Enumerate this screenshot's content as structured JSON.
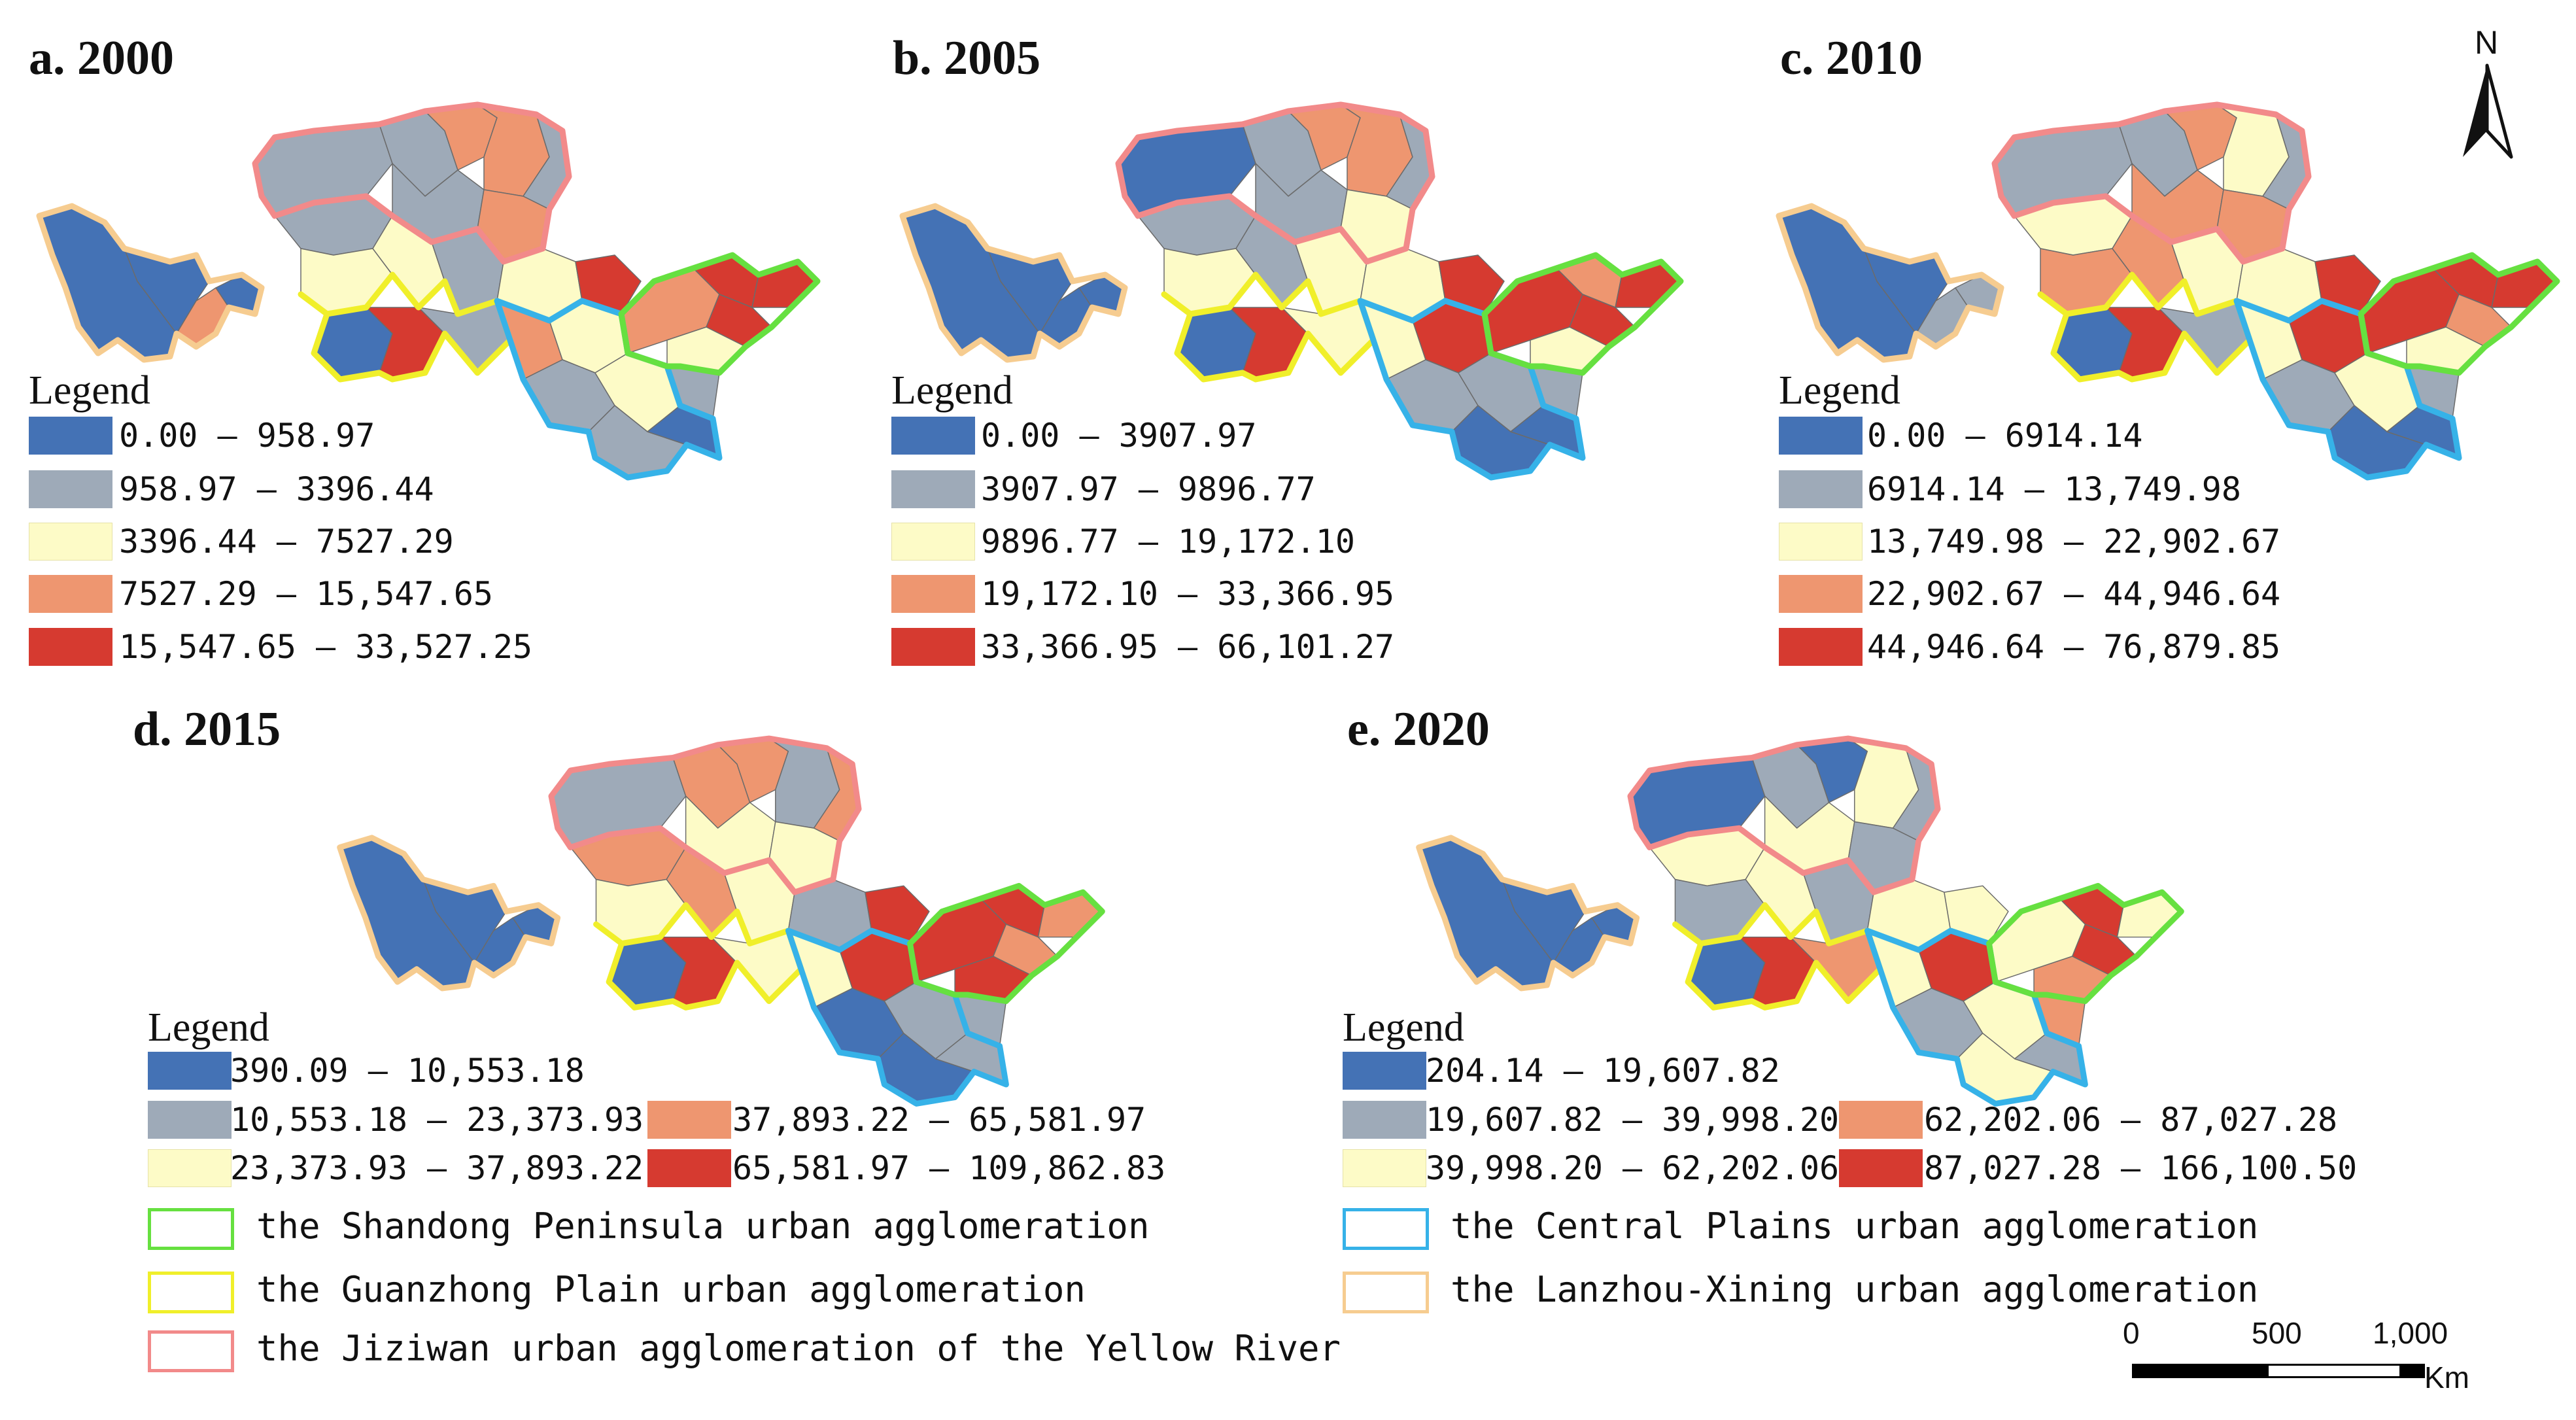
{
  "colors": {
    "class1": "#4472b5",
    "class2": "#9eaab8",
    "class3": "#fdfbc7",
    "class4": "#ee9670",
    "class5": "#d63a30",
    "shandong_outline": "#66e040",
    "guanzhong_outline": "#f0ef2a",
    "jiziwan_outline": "#f28a8a",
    "central_plains_outline": "#36b2e8",
    "lanzhou_xining_outline": "#f6cc90"
  },
  "legend_word": "Legend",
  "panels": [
    {
      "title": "a. 2000",
      "ranges": [
        "0.00 — 958.97",
        "958.97 — 3396.44",
        "3396.44 — 7527.29",
        "7527.29 — 15,547.65",
        "15,547.65 — 33,527.25"
      ]
    },
    {
      "title": "b. 2005",
      "ranges": [
        "0.00 — 3907.97",
        "3907.97 — 9896.77",
        "9896.77 — 19,172.10",
        "19,172.10 — 33,366.95",
        "33,366.95 — 66,101.27"
      ]
    },
    {
      "title": "c. 2010",
      "ranges": [
        "0.00 — 6914.14",
        "6914.14 — 13,749.98",
        "13,749.98 — 22,902.67",
        "22,902.67 — 44,946.64",
        "44,946.64 — 76,879.85"
      ]
    },
    {
      "title": "d. 2015",
      "ranges": [
        "390.09 — 10,553.18",
        "10,553.18 — 23,373.93",
        "23,373.93 — 37,893.22",
        "37,893.22 — 65,581.97",
        "65,581.97 — 109,862.83"
      ]
    },
    {
      "title": "e. 2020",
      "ranges": [
        "204.14 — 19,607.82",
        "19,607.82 — 39,998.20",
        "39,998.20 — 62,202.06",
        "62,202.06 — 87,027.28",
        "87,027.28 — 166,100.50"
      ]
    }
  ],
  "agglomerations": [
    {
      "label": "the Shandong Peninsula urban agglomeration",
      "color_key": "shandong_outline"
    },
    {
      "label": "the Guanzhong Plain urban agglomeration",
      "color_key": "guanzhong_outline"
    },
    {
      "label": "the Jiziwan urban agglomeration of the Yellow River",
      "color_key": "jiziwan_outline"
    },
    {
      "label": "the Central Plains urban agglomeration",
      "color_key": "central_plains_outline"
    },
    {
      "label": "the Lanzhou-Xining urban agglomeration",
      "color_key": "lanzhou_xining_outline"
    }
  ],
  "north_arrow": {
    "label": "N"
  },
  "scale_bar": {
    "ticks": [
      "0",
      "500",
      "1,000"
    ],
    "unit": "Km"
  }
}
